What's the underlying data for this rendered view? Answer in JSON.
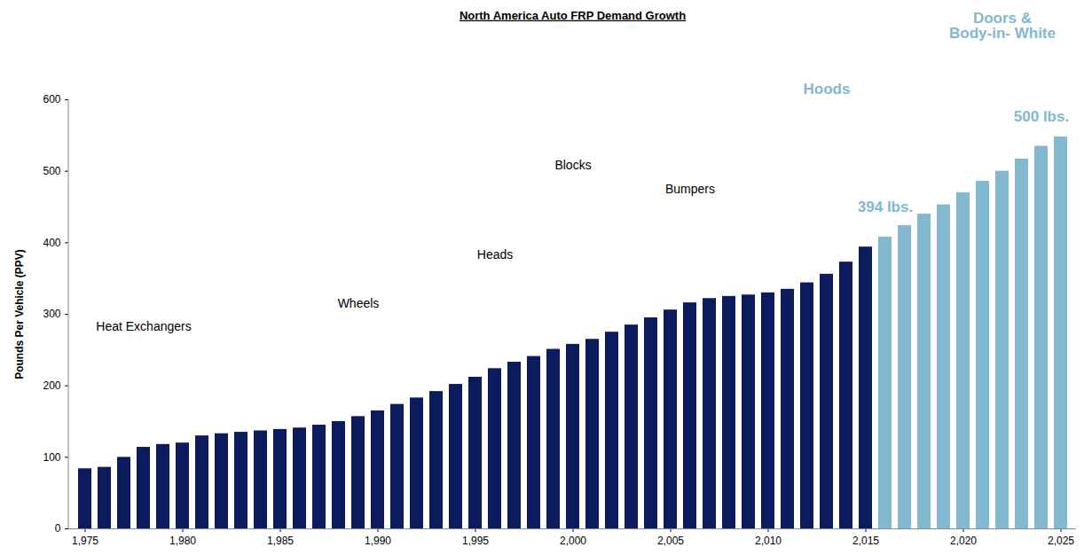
{
  "chart_data": {
    "type": "bar",
    "title": "North America Auto FRP Demand Growth",
    "y_label": "Pounds Per Vehicle (PPV)",
    "categories": [
      1975,
      1976,
      1977,
      1978,
      1979,
      1980,
      1981,
      1982,
      1983,
      1984,
      1985,
      1986,
      1987,
      1988,
      1989,
      1990,
      1991,
      1992,
      1993,
      1994,
      1995,
      1996,
      1997,
      1998,
      1999,
      2000,
      2001,
      2002,
      2003,
      2004,
      2005,
      2006,
      2007,
      2008,
      2009,
      2010,
      2011,
      2012,
      2013,
      2014,
      2015,
      2016,
      2017,
      2018,
      2019,
      2020,
      2021,
      2022,
      2023,
      2024,
      2025
    ],
    "values": [
      84,
      86,
      100,
      114,
      118,
      120,
      130,
      133,
      135,
      137,
      139,
      141,
      145,
      150,
      157,
      165,
      174,
      183,
      192,
      202,
      212,
      224,
      233,
      241,
      251,
      258,
      265,
      275,
      285,
      295,
      306,
      316,
      322,
      325,
      327,
      330,
      335,
      344,
      356,
      373,
      394,
      408,
      424,
      440,
      453,
      470,
      486,
      500,
      517,
      535,
      548
    ],
    "colors": [
      "#0b1b5e",
      "#0b1b5e",
      "#0b1b5e",
      "#0b1b5e",
      "#0b1b5e",
      "#0b1b5e",
      "#0b1b5e",
      "#0b1b5e",
      "#0b1b5e",
      "#0b1b5e",
      "#0b1b5e",
      "#0b1b5e",
      "#0b1b5e",
      "#0b1b5e",
      "#0b1b5e",
      "#0b1b5e",
      "#0b1b5e",
      "#0b1b5e",
      "#0b1b5e",
      "#0b1b5e",
      "#0b1b5e",
      "#0b1b5e",
      "#0b1b5e",
      "#0b1b5e",
      "#0b1b5e",
      "#0b1b5e",
      "#0b1b5e",
      "#0b1b5e",
      "#0b1b5e",
      "#0b1b5e",
      "#0b1b5e",
      "#0b1b5e",
      "#0b1b5e",
      "#0b1b5e",
      "#0b1b5e",
      "#0b1b5e",
      "#0b1b5e",
      "#0b1b5e",
      "#0b1b5e",
      "#0b1b5e",
      "#0b1b5e",
      "#82b8d0",
      "#82b8d0",
      "#82b8d0",
      "#82b8d0",
      "#82b8d0",
      "#82b8d0",
      "#82b8d0",
      "#82b8d0",
      "#82b8d0",
      "#82b8d0"
    ],
    "xticks": [
      1975,
      1980,
      1985,
      1990,
      1995,
      2000,
      2005,
      2010,
      2015,
      2020,
      2025
    ],
    "ylim": [
      0,
      600
    ],
    "yticks": [
      0,
      100,
      200,
      300,
      400,
      500,
      600
    ],
    "grid": false,
    "annotations": [
      {
        "text": "Heat Exchangers",
        "color": "#000000"
      },
      {
        "text": "Wheels",
        "color": "#000000"
      },
      {
        "text": "Heads",
        "color": "#000000"
      },
      {
        "text": "Blocks",
        "color": "#000000"
      },
      {
        "text": "Bumpers",
        "color": "#000000"
      },
      {
        "text": "Hoods",
        "color": "#82b8d0"
      },
      {
        "text": "394 lbs.",
        "color": "#82b8d0"
      },
      {
        "text": "500 lbs.",
        "color": "#82b8d0"
      },
      {
        "text": "Doors & Body-in- White",
        "color": "#82b8d0"
      }
    ]
  }
}
